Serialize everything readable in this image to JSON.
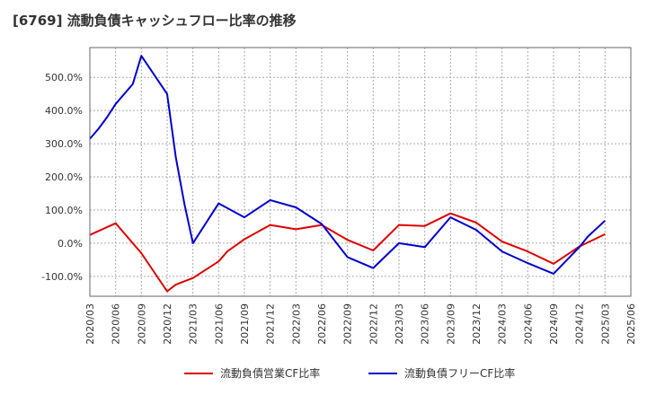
{
  "title": "[6769]  流動負債キャッシュフロー比率の推移",
  "colors": {
    "series1": "#dd0000",
    "series2": "#0000cc",
    "grid": "#aaaaaa",
    "axis": "#666666",
    "plotbg": "#ffffff"
  },
  "chart_data": {
    "type": "line",
    "title": "[6769]  流動負債キャッシュフロー比率の推移",
    "xlabel": "",
    "ylabel": "",
    "ylim": [
      -160,
      590
    ],
    "yticks": [
      -100,
      0,
      100,
      200,
      300,
      400,
      500
    ],
    "ytick_labels": [
      "-100.0%",
      "0.0%",
      "100.0%",
      "200.0%",
      "300.0%",
      "400.0%",
      "500.0%"
    ],
    "grid": true,
    "legend_position": "bottom",
    "x_tick_labels": [
      "2020/03",
      "2020/06",
      "2020/09",
      "2020/12",
      "2021/03",
      "2021/06",
      "2021/09",
      "2021/12",
      "2022/03",
      "2022/06",
      "2022/09",
      "2022/12",
      "2023/03",
      "2023/06",
      "2023/09",
      "2023/12",
      "2024/03",
      "2024/06",
      "2024/09",
      "2024/12",
      "2025/03",
      "2025/06"
    ],
    "series": [
      {
        "name": "流動負債営業CF比率",
        "color": "#dd0000",
        "x": [
          "2020/03",
          "2020/06",
          "2020/09",
          "2020/12",
          "2021/01",
          "2021/03",
          "2021/06",
          "2021/07",
          "2021/09",
          "2021/12",
          "2022/03",
          "2022/06",
          "2022/09",
          "2022/12",
          "2023/03",
          "2023/06",
          "2023/09",
          "2023/12",
          "2024/03",
          "2024/06",
          "2024/09",
          "2024/12",
          "2025/03"
        ],
        "values": [
          25,
          60,
          -30,
          -145,
          -125,
          -105,
          -55,
          -25,
          12,
          55,
          42,
          55,
          10,
          -22,
          55,
          52,
          90,
          62,
          5,
          -25,
          -62,
          -10,
          27
        ]
      },
      {
        "name": "流動負債フリーCF比率",
        "color": "#0000cc",
        "x": [
          "2020/03",
          "2020/04",
          "2020/05",
          "2020/06",
          "2020/08",
          "2020/09",
          "2020/12",
          "2021/01",
          "2021/02",
          "2021/03",
          "2021/06",
          "2021/09",
          "2021/12",
          "2022/03",
          "2022/06",
          "2022/09",
          "2022/12",
          "2023/03",
          "2023/06",
          "2023/09",
          "2023/12",
          "2024/03",
          "2024/06",
          "2024/09",
          "2024/12",
          "2025/01",
          "2025/03"
        ],
        "values": [
          315,
          345,
          380,
          420,
          480,
          565,
          450,
          260,
          120,
          0,
          120,
          78,
          130,
          108,
          58,
          -42,
          -75,
          0,
          -12,
          78,
          40,
          -25,
          -60,
          -92,
          -12,
          20,
          68
        ]
      }
    ]
  }
}
